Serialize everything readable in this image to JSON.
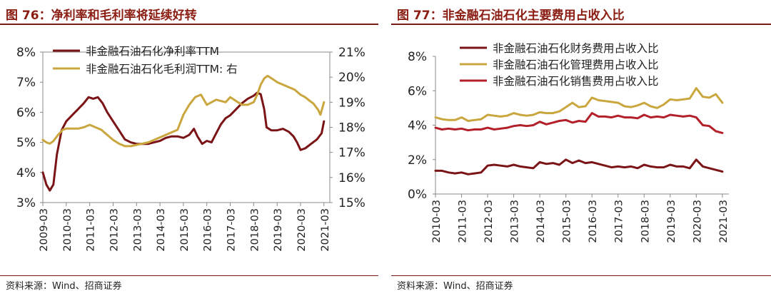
{
  "charts": [
    {
      "title": "图 76：净利率和毛利率将延续好转",
      "source": "资料来源：Wind、招商证券"
    },
    {
      "title": "图 77：非金融石油石化主要费用占收入比",
      "source": "资料来源：Wind、招商证券"
    }
  ],
  "chart_data": [
    {
      "type": "line",
      "title": "图 76：净利率和毛利率将延续好转",
      "x_range": [
        2009.0,
        2021.25
      ],
      "x_ticks": [
        "2009-03",
        "2010-03",
        "2011-03",
        "2012-03",
        "2013-03",
        "2014-03",
        "2015-03",
        "2016-03",
        "2017-03",
        "2018-03",
        "2019-03",
        "2020-03",
        "2021-03"
      ],
      "ylim_left": [
        3,
        8
      ],
      "yticks_left": [
        "3%",
        "4%",
        "5%",
        "6%",
        "7%",
        "8%"
      ],
      "ylim_right": [
        15,
        21
      ],
      "yticks_right": [
        "15%",
        "16%",
        "17%",
        "18%",
        "19%",
        "20%",
        "21%"
      ],
      "series": [
        {
          "name": "非金融石油石化净利率TTM",
          "axis": "left",
          "color": "#7b1416",
          "points": [
            [
              2009.0,
              4.0
            ],
            [
              2009.15,
              3.6
            ],
            [
              2009.3,
              3.4
            ],
            [
              2009.45,
              3.6
            ],
            [
              2009.6,
              4.6
            ],
            [
              2009.8,
              5.4
            ],
            [
              2010.0,
              5.7
            ],
            [
              2010.25,
              5.9
            ],
            [
              2010.5,
              6.1
            ],
            [
              2010.75,
              6.3
            ],
            [
              2010.95,
              6.5
            ],
            [
              2011.15,
              6.45
            ],
            [
              2011.35,
              6.5
            ],
            [
              2011.55,
              6.3
            ],
            [
              2011.75,
              6.0
            ],
            [
              2012.0,
              5.7
            ],
            [
              2012.25,
              5.4
            ],
            [
              2012.5,
              5.1
            ],
            [
              2012.75,
              5.0
            ],
            [
              2013.0,
              4.95
            ],
            [
              2013.25,
              4.95
            ],
            [
              2013.5,
              4.95
            ],
            [
              2013.75,
              5.0
            ],
            [
              2014.0,
              5.05
            ],
            [
              2014.25,
              5.15
            ],
            [
              2014.5,
              5.2
            ],
            [
              2014.75,
              5.2
            ],
            [
              2015.0,
              5.15
            ],
            [
              2015.25,
              5.25
            ],
            [
              2015.45,
              5.45
            ],
            [
              2015.6,
              5.2
            ],
            [
              2015.8,
              4.95
            ],
            [
              2016.0,
              5.05
            ],
            [
              2016.2,
              5.0
            ],
            [
              2016.4,
              5.3
            ],
            [
              2016.6,
              5.6
            ],
            [
              2016.8,
              5.8
            ],
            [
              2017.0,
              5.9
            ],
            [
              2017.25,
              6.1
            ],
            [
              2017.5,
              6.3
            ],
            [
              2017.75,
              6.45
            ],
            [
              2018.0,
              6.55
            ],
            [
              2018.15,
              6.65
            ],
            [
              2018.3,
              6.6
            ],
            [
              2018.45,
              6.1
            ],
            [
              2018.55,
              5.5
            ],
            [
              2018.75,
              5.4
            ],
            [
              2019.0,
              5.4
            ],
            [
              2019.25,
              5.45
            ],
            [
              2019.5,
              5.35
            ],
            [
              2019.7,
              5.2
            ],
            [
              2019.85,
              5.0
            ],
            [
              2020.0,
              4.75
            ],
            [
              2020.2,
              4.8
            ],
            [
              2020.45,
              4.95
            ],
            [
              2020.7,
              5.1
            ],
            [
              2020.9,
              5.3
            ],
            [
              2021.0,
              5.7
            ]
          ]
        },
        {
          "name": "非金融石油石化毛利润TTM: 右",
          "axis": "right",
          "color": "#c9a73e",
          "points": [
            [
              2009.0,
              17.5
            ],
            [
              2009.15,
              17.4
            ],
            [
              2009.3,
              17.35
            ],
            [
              2009.45,
              17.45
            ],
            [
              2009.65,
              17.7
            ],
            [
              2009.85,
              17.9
            ],
            [
              2010.0,
              17.95
            ],
            [
              2010.25,
              17.95
            ],
            [
              2010.5,
              17.95
            ],
            [
              2010.75,
              18.0
            ],
            [
              2011.0,
              18.1
            ],
            [
              2011.25,
              18.0
            ],
            [
              2011.5,
              17.9
            ],
            [
              2011.75,
              17.7
            ],
            [
              2012.0,
              17.5
            ],
            [
              2012.25,
              17.35
            ],
            [
              2012.5,
              17.25
            ],
            [
              2012.75,
              17.25
            ],
            [
              2013.0,
              17.3
            ],
            [
              2013.25,
              17.35
            ],
            [
              2013.5,
              17.4
            ],
            [
              2013.75,
              17.5
            ],
            [
              2014.0,
              17.6
            ],
            [
              2014.25,
              17.7
            ],
            [
              2014.5,
              17.8
            ],
            [
              2014.75,
              17.9
            ],
            [
              2015.0,
              18.5
            ],
            [
              2015.25,
              18.9
            ],
            [
              2015.5,
              19.2
            ],
            [
              2015.75,
              19.3
            ],
            [
              2016.0,
              18.9
            ],
            [
              2016.2,
              19.0
            ],
            [
              2016.4,
              19.1
            ],
            [
              2016.6,
              19.05
            ],
            [
              2016.8,
              19.0
            ],
            [
              2017.0,
              19.2
            ],
            [
              2017.25,
              19.05
            ],
            [
              2017.5,
              18.9
            ],
            [
              2017.75,
              18.9
            ],
            [
              2018.0,
              19.0
            ],
            [
              2018.15,
              19.3
            ],
            [
              2018.3,
              19.7
            ],
            [
              2018.45,
              19.95
            ],
            [
              2018.6,
              20.05
            ],
            [
              2018.85,
              19.9
            ],
            [
              2019.0,
              19.8
            ],
            [
              2019.25,
              19.7
            ],
            [
              2019.5,
              19.6
            ],
            [
              2019.75,
              19.5
            ],
            [
              2020.0,
              19.3
            ],
            [
              2020.2,
              19.2
            ],
            [
              2020.4,
              19.05
            ],
            [
              2020.55,
              18.95
            ],
            [
              2020.75,
              18.7
            ],
            [
              2020.85,
              18.5
            ],
            [
              2021.0,
              19.0
            ]
          ]
        }
      ]
    },
    {
      "type": "line",
      "title": "图 77：非金融石油石化主要费用占收入比",
      "x_range": [
        2010.0,
        2021.25
      ],
      "x_ticks": [
        "2010-03",
        "2011-03",
        "2012-03",
        "2013-03",
        "2014-03",
        "2015-03",
        "2016-03",
        "2017-03",
        "2018-03",
        "2019-03",
        "2020-03",
        "2021-03"
      ],
      "ylim": [
        0,
        8
      ],
      "yticks": [
        "0%",
        "2%",
        "4%",
        "6%",
        "8%"
      ],
      "series": [
        {
          "name": "非金融石油石化财务费用占收入比",
          "color": "#7b1416",
          "points": [
            [
              2010.0,
              1.35
            ],
            [
              2010.25,
              1.35
            ],
            [
              2010.5,
              1.25
            ],
            [
              2010.75,
              1.2
            ],
            [
              2011.0,
              1.25
            ],
            [
              2011.25,
              1.15
            ],
            [
              2011.5,
              1.2
            ],
            [
              2011.75,
              1.25
            ],
            [
              2012.0,
              1.65
            ],
            [
              2012.25,
              1.7
            ],
            [
              2012.5,
              1.65
            ],
            [
              2012.75,
              1.6
            ],
            [
              2013.0,
              1.7
            ],
            [
              2013.25,
              1.6
            ],
            [
              2013.5,
              1.55
            ],
            [
              2013.75,
              1.5
            ],
            [
              2014.0,
              1.85
            ],
            [
              2014.25,
              1.75
            ],
            [
              2014.5,
              1.8
            ],
            [
              2014.75,
              1.7
            ],
            [
              2015.0,
              2.0
            ],
            [
              2015.25,
              1.8
            ],
            [
              2015.5,
              1.95
            ],
            [
              2015.75,
              1.8
            ],
            [
              2016.0,
              1.85
            ],
            [
              2016.25,
              1.75
            ],
            [
              2016.5,
              1.65
            ],
            [
              2016.75,
              1.55
            ],
            [
              2017.0,
              1.6
            ],
            [
              2017.25,
              1.55
            ],
            [
              2017.5,
              1.6
            ],
            [
              2017.75,
              1.5
            ],
            [
              2018.0,
              1.7
            ],
            [
              2018.25,
              1.6
            ],
            [
              2018.5,
              1.55
            ],
            [
              2018.75,
              1.55
            ],
            [
              2019.0,
              1.7
            ],
            [
              2019.25,
              1.6
            ],
            [
              2019.5,
              1.6
            ],
            [
              2019.75,
              1.5
            ],
            [
              2020.0,
              2.0
            ],
            [
              2020.25,
              1.6
            ],
            [
              2020.5,
              1.5
            ],
            [
              2020.75,
              1.4
            ],
            [
              2021.0,
              1.3
            ]
          ]
        },
        {
          "name": "非金融石油石化管理费用占收入比",
          "color": "#c9a73e",
          "points": [
            [
              2010.0,
              4.45
            ],
            [
              2010.25,
              4.35
            ],
            [
              2010.5,
              4.3
            ],
            [
              2010.75,
              4.3
            ],
            [
              2011.0,
              4.45
            ],
            [
              2011.25,
              4.25
            ],
            [
              2011.5,
              4.3
            ],
            [
              2011.75,
              4.35
            ],
            [
              2012.0,
              4.6
            ],
            [
              2012.25,
              4.55
            ],
            [
              2012.5,
              4.5
            ],
            [
              2012.75,
              4.55
            ],
            [
              2013.0,
              4.7
            ],
            [
              2013.25,
              4.6
            ],
            [
              2013.5,
              4.55
            ],
            [
              2013.75,
              4.6
            ],
            [
              2014.0,
              4.75
            ],
            [
              2014.25,
              4.7
            ],
            [
              2014.5,
              4.7
            ],
            [
              2014.75,
              4.8
            ],
            [
              2015.0,
              5.05
            ],
            [
              2015.25,
              5.3
            ],
            [
              2015.5,
              5.05
            ],
            [
              2015.75,
              5.1
            ],
            [
              2016.0,
              5.6
            ],
            [
              2016.25,
              5.45
            ],
            [
              2016.5,
              5.4
            ],
            [
              2016.75,
              5.35
            ],
            [
              2017.0,
              5.3
            ],
            [
              2017.25,
              5.1
            ],
            [
              2017.5,
              5.05
            ],
            [
              2017.75,
              5.15
            ],
            [
              2018.0,
              5.3
            ],
            [
              2018.25,
              5.1
            ],
            [
              2018.5,
              5.0
            ],
            [
              2018.75,
              5.2
            ],
            [
              2019.0,
              5.5
            ],
            [
              2019.25,
              5.45
            ],
            [
              2019.5,
              5.5
            ],
            [
              2019.75,
              5.55
            ],
            [
              2020.0,
              6.15
            ],
            [
              2020.25,
              5.65
            ],
            [
              2020.5,
              5.6
            ],
            [
              2020.75,
              5.8
            ],
            [
              2021.0,
              5.3
            ]
          ]
        },
        {
          "name": "非金融石油石化销售费用占收入比",
          "color": "#b3202a",
          "points": [
            [
              2010.0,
              3.85
            ],
            [
              2010.25,
              3.75
            ],
            [
              2010.5,
              3.8
            ],
            [
              2010.75,
              3.75
            ],
            [
              2011.0,
              3.8
            ],
            [
              2011.25,
              3.7
            ],
            [
              2011.5,
              3.75
            ],
            [
              2011.75,
              3.75
            ],
            [
              2012.0,
              3.85
            ],
            [
              2012.25,
              3.75
            ],
            [
              2012.5,
              3.8
            ],
            [
              2012.75,
              3.85
            ],
            [
              2013.0,
              3.95
            ],
            [
              2013.25,
              4.0
            ],
            [
              2013.5,
              3.95
            ],
            [
              2013.75,
              4.0
            ],
            [
              2014.0,
              4.2
            ],
            [
              2014.25,
              4.05
            ],
            [
              2014.5,
              4.15
            ],
            [
              2014.75,
              4.25
            ],
            [
              2015.0,
              4.3
            ],
            [
              2015.25,
              4.15
            ],
            [
              2015.5,
              4.25
            ],
            [
              2015.75,
              4.2
            ],
            [
              2016.0,
              4.7
            ],
            [
              2016.25,
              4.5
            ],
            [
              2016.5,
              4.5
            ],
            [
              2016.75,
              4.45
            ],
            [
              2017.0,
              4.55
            ],
            [
              2017.25,
              4.45
            ],
            [
              2017.5,
              4.45
            ],
            [
              2017.75,
              4.4
            ],
            [
              2018.0,
              4.6
            ],
            [
              2018.25,
              4.45
            ],
            [
              2018.5,
              4.5
            ],
            [
              2018.75,
              4.45
            ],
            [
              2019.0,
              4.6
            ],
            [
              2019.25,
              4.55
            ],
            [
              2019.5,
              4.5
            ],
            [
              2019.75,
              4.55
            ],
            [
              2020.0,
              4.45
            ],
            [
              2020.25,
              4.0
            ],
            [
              2020.5,
              3.95
            ],
            [
              2020.75,
              3.65
            ],
            [
              2021.0,
              3.55
            ]
          ]
        }
      ]
    }
  ]
}
